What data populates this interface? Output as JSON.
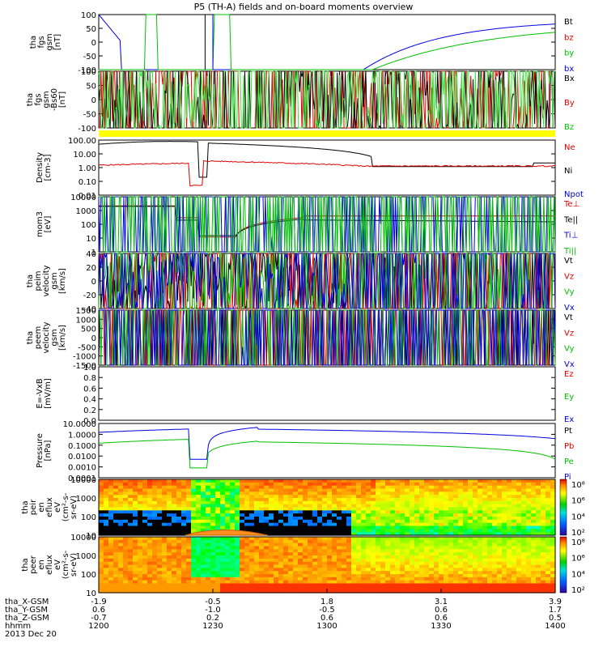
{
  "chart_data": {
    "type": "line",
    "title": "P5 (TH-A) fields and on-board moments overview",
    "date_label": "2013 Dec 20",
    "bottom_axis": {
      "rows": [
        {
          "label": "tha_X-GSM",
          "values": [
            "-1.9",
            "-0.5",
            "1.8",
            "3.1",
            "3.9"
          ]
        },
        {
          "label": "tha_Y-GSM",
          "values": [
            "0.6",
            "-1.0",
            "-0.5",
            "0.6",
            "1.7"
          ]
        },
        {
          "label": "tha_Z-GSM",
          "values": [
            "-0.7",
            "0.2",
            "0.6",
            "0.6",
            "0.5"
          ]
        },
        {
          "label": "hhmm",
          "values": [
            "1200",
            "1230",
            "1300",
            "1330",
            "1400"
          ]
        }
      ]
    },
    "colors": {
      "black": "#000000",
      "red": "#e00000",
      "green": "#00c000",
      "blue": "#0000e0",
      "lightgreen": "#40e040",
      "yellow": "#ffff00"
    },
    "panels": [
      {
        "id": "fgs",
        "ylabel": [
          "tha",
          "fgs",
          "gsm",
          "[nT]"
        ],
        "yticks": [
          "100",
          "50",
          "0",
          "-50",
          "-100"
        ],
        "legend": [
          {
            "text": "Bt",
            "color": "black"
          },
          {
            "text": "bz",
            "color": "red"
          },
          {
            "text": "by",
            "color": "green"
          },
          {
            "text": "bx",
            "color": "blue"
          }
        ]
      },
      {
        "id": "fgs_dsl",
        "ylabel": [
          "tha",
          "fgs",
          "gsm",
          "-Bs60",
          "[nT]"
        ],
        "yticks": [
          "100",
          "50",
          "0",
          "-50",
          "-100"
        ],
        "legend": [
          {
            "text": "Bx",
            "color": "black"
          },
          {
            "text": "By",
            "color": "red"
          },
          {
            "text": "Bz",
            "color": "green"
          }
        ]
      },
      {
        "id": "density",
        "ylabel": [
          "Density",
          "[cm-3]"
        ],
        "yticks": [
          "100.00",
          "10.00",
          "1.00",
          "0.10",
          "0.01"
        ],
        "legend": [
          {
            "text": "Ne",
            "color": "red"
          },
          {
            "text": "Ni",
            "color": "black"
          },
          {
            "text": "Npot",
            "color": "blue"
          }
        ]
      },
      {
        "id": "temperature",
        "ylabel": [
          "mom3",
          "[eV]"
        ],
        "yticks": [
          "10000",
          "1000",
          "100",
          "10",
          "1"
        ],
        "legend": [
          {
            "text": "Te⊥",
            "color": "red"
          },
          {
            "text": "Te||",
            "color": "black"
          },
          {
            "text": "Ti⊥",
            "color": "blue"
          },
          {
            "text": "Ti||",
            "color": "green"
          }
        ]
      },
      {
        "id": "ion_velocity",
        "ylabel": [
          "tha",
          "peim",
          "velocity",
          "gsm",
          "[km/s]"
        ],
        "yticks": [
          "40",
          "20",
          "0",
          "-20",
          "-40"
        ],
        "legend": [
          {
            "text": "Vt",
            "color": "black"
          },
          {
            "text": "Vz",
            "color": "red"
          },
          {
            "text": "Vy",
            "color": "green"
          },
          {
            "text": "Vx",
            "color": "blue"
          }
        ]
      },
      {
        "id": "electron_velocity",
        "ylabel": [
          "tha",
          "peem",
          "velocity",
          "gsm",
          "[km/s]"
        ],
        "yticks": [
          "1500",
          "1000",
          "500",
          "0",
          "-500",
          "-1000",
          "-1500"
        ],
        "legend": [
          {
            "text": "Vt",
            "color": "black"
          },
          {
            "text": "Vz",
            "color": "red"
          },
          {
            "text": "Vy",
            "color": "green"
          },
          {
            "text": "Vx",
            "color": "blue"
          }
        ]
      },
      {
        "id": "efield",
        "ylabel": [
          "E=-VxB",
          "[mV/m]"
        ],
        "yticks": [
          "1.0",
          "0.8",
          "0.6",
          "0.4",
          "0.2",
          "0.0"
        ],
        "legend": [
          {
            "text": "Ez",
            "color": "red"
          },
          {
            "text": "Ey",
            "color": "green"
          },
          {
            "text": "Ex",
            "color": "blue"
          }
        ]
      },
      {
        "id": "pressure",
        "ylabel": [
          "Pressure",
          "[nPa]"
        ],
        "yticks": [
          "10.0000",
          "1.0000",
          "0.1000",
          "0.0100",
          "0.0010",
          "0.0001"
        ],
        "legend": [
          {
            "text": "Pt",
            "color": "black"
          },
          {
            "text": "Pb",
            "color": "red"
          },
          {
            "text": "Pe",
            "color": "green"
          },
          {
            "text": "Pi",
            "color": "blue"
          }
        ]
      },
      {
        "id": "ion_spectrogram",
        "ylabel": [
          "tha",
          "peir",
          "en",
          "eflux",
          "eV",
          "(cm²-s-",
          "sr-eV)"
        ],
        "yticks": [
          "10000",
          "1000",
          "100",
          "10"
        ],
        "colorbar_ticks": [
          "10⁸",
          "10⁶",
          "10⁴",
          "10²"
        ]
      },
      {
        "id": "electron_spectrogram",
        "ylabel": [
          "tha",
          "peer",
          "en",
          "eflux",
          "eV",
          "(cm²-s-",
          "sr-eV)"
        ],
        "yticks": [
          "10000",
          "1000",
          "100",
          "10"
        ],
        "colorbar_ticks": [
          "10⁸",
          "10⁶",
          "10⁴",
          "10²"
        ]
      }
    ]
  }
}
